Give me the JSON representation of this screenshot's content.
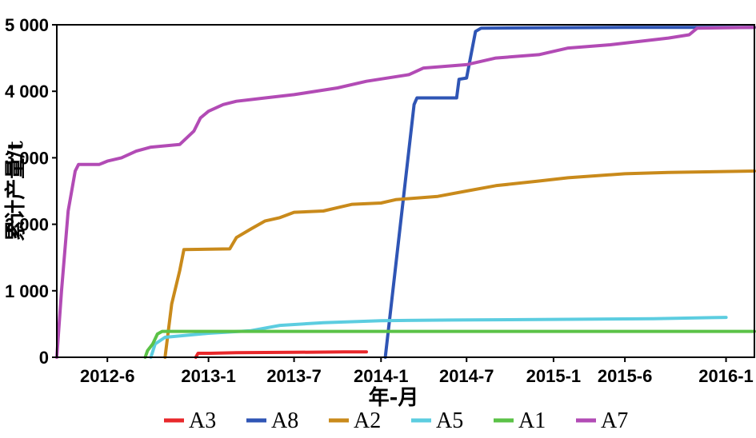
{
  "chart_data": {
    "type": "line",
    "xlabel": "年-月",
    "ylabel": "累计产量/t",
    "ylim": [
      0,
      5000
    ],
    "yticks": [
      0,
      1000,
      2000,
      3000,
      4000,
      5000
    ],
    "ytick_labels": [
      "0",
      "1 000",
      "2 000",
      "3 000",
      "4 000",
      "5 000"
    ],
    "xlim": [
      "2012-02-15",
      "2016-03-01"
    ],
    "xticks": [
      "2012-06",
      "2013-01",
      "2013-07",
      "2014-01",
      "2014-07",
      "2015-01",
      "2015-06",
      "2016-01"
    ],
    "xtick_labels": [
      "2012-6",
      "2013-1",
      "2013-7",
      "2014-1",
      "2014-7",
      "2015-1",
      "2015-6",
      "2016-1"
    ],
    "grid": false,
    "legend_position": "bottom",
    "series": [
      {
        "name": "A3",
        "color": "#e8282b",
        "points": [
          [
            "2012-12-05",
            0
          ],
          [
            "2012-12-10",
            60
          ],
          [
            "2013-01-05",
            60
          ],
          [
            "2013-03-01",
            70
          ],
          [
            "2013-07-01",
            75
          ],
          [
            "2013-10-15",
            80
          ],
          [
            "2013-12-01",
            80
          ]
        ]
      },
      {
        "name": "A8",
        "color": "#2f55b5",
        "points": [
          [
            "2014-01-10",
            0
          ],
          [
            "2014-03-12",
            3800
          ],
          [
            "2014-03-18",
            3900
          ],
          [
            "2014-06-10",
            3900
          ],
          [
            "2014-06-15",
            4180
          ],
          [
            "2014-07-01",
            4200
          ],
          [
            "2014-07-20",
            4900
          ],
          [
            "2014-08-01",
            4950
          ],
          [
            "2015-06-01",
            4960
          ],
          [
            "2016-03-01",
            4960
          ]
        ]
      },
      {
        "name": "A2",
        "color": "#c98a1b",
        "points": [
          [
            "2012-10-01",
            0
          ],
          [
            "2012-10-15",
            800
          ],
          [
            "2012-11-01",
            1300
          ],
          [
            "2012-11-10",
            1620
          ],
          [
            "2013-02-15",
            1630
          ],
          [
            "2013-03-01",
            1800
          ],
          [
            "2013-04-01",
            1930
          ],
          [
            "2013-05-01",
            2050
          ],
          [
            "2013-06-01",
            2100
          ],
          [
            "2013-07-01",
            2180
          ],
          [
            "2013-09-01",
            2200
          ],
          [
            "2013-10-01",
            2250
          ],
          [
            "2013-11-01",
            2300
          ],
          [
            "2014-01-01",
            2320
          ],
          [
            "2014-02-01",
            2370
          ],
          [
            "2014-05-01",
            2420
          ],
          [
            "2014-07-01",
            2500
          ],
          [
            "2014-09-01",
            2580
          ],
          [
            "2014-12-01",
            2650
          ],
          [
            "2015-02-01",
            2700
          ],
          [
            "2015-06-01",
            2760
          ],
          [
            "2015-09-01",
            2780
          ],
          [
            "2016-03-01",
            2800
          ]
        ]
      },
      {
        "name": "A5",
        "color": "#5ccde0",
        "points": [
          [
            "2012-09-01",
            0
          ],
          [
            "2012-09-10",
            200
          ],
          [
            "2012-10-01",
            300
          ],
          [
            "2013-01-01",
            360
          ],
          [
            "2013-04-01",
            400
          ],
          [
            "2013-06-01",
            480
          ],
          [
            "2013-09-01",
            520
          ],
          [
            "2014-01-01",
            550
          ],
          [
            "2014-06-01",
            560
          ],
          [
            "2015-01-01",
            570
          ],
          [
            "2015-04-01",
            575
          ],
          [
            "2015-08-01",
            580
          ],
          [
            "2016-01-01",
            600
          ]
        ]
      },
      {
        "name": "A1",
        "color": "#5bc247",
        "points": [
          [
            "2012-08-20",
            0
          ],
          [
            "2012-08-25",
            100
          ],
          [
            "2012-09-05",
            200
          ],
          [
            "2012-09-15",
            350
          ],
          [
            "2012-09-25",
            390
          ],
          [
            "2013-01-01",
            390
          ],
          [
            "2016-03-01",
            390
          ]
        ]
      },
      {
        "name": "A7",
        "color": "#b24bb5",
        "points": [
          [
            "2012-02-15",
            0
          ],
          [
            "2012-02-25",
            1000
          ],
          [
            "2012-03-10",
            2200
          ],
          [
            "2012-03-25",
            2800
          ],
          [
            "2012-04-01",
            2900
          ],
          [
            "2012-05-15",
            2900
          ],
          [
            "2012-06-01",
            2950
          ],
          [
            "2012-07-01",
            3000
          ],
          [
            "2012-08-01",
            3100
          ],
          [
            "2012-09-01",
            3160
          ],
          [
            "2012-11-01",
            3200
          ],
          [
            "2012-12-01",
            3400
          ],
          [
            "2012-12-15",
            3600
          ],
          [
            "2013-01-01",
            3700
          ],
          [
            "2013-02-01",
            3800
          ],
          [
            "2013-03-01",
            3850
          ],
          [
            "2013-05-01",
            3900
          ],
          [
            "2013-07-01",
            3950
          ],
          [
            "2013-10-01",
            4050
          ],
          [
            "2013-12-01",
            4150
          ],
          [
            "2014-03-01",
            4250
          ],
          [
            "2014-04-01",
            4350
          ],
          [
            "2014-07-01",
            4400
          ],
          [
            "2014-09-01",
            4500
          ],
          [
            "2014-12-01",
            4550
          ],
          [
            "2015-02-01",
            4650
          ],
          [
            "2015-05-01",
            4700
          ],
          [
            "2015-09-01",
            4800
          ],
          [
            "2015-10-15",
            4850
          ],
          [
            "2015-11-01",
            4950
          ],
          [
            "2016-03-01",
            4960
          ]
        ]
      }
    ]
  }
}
